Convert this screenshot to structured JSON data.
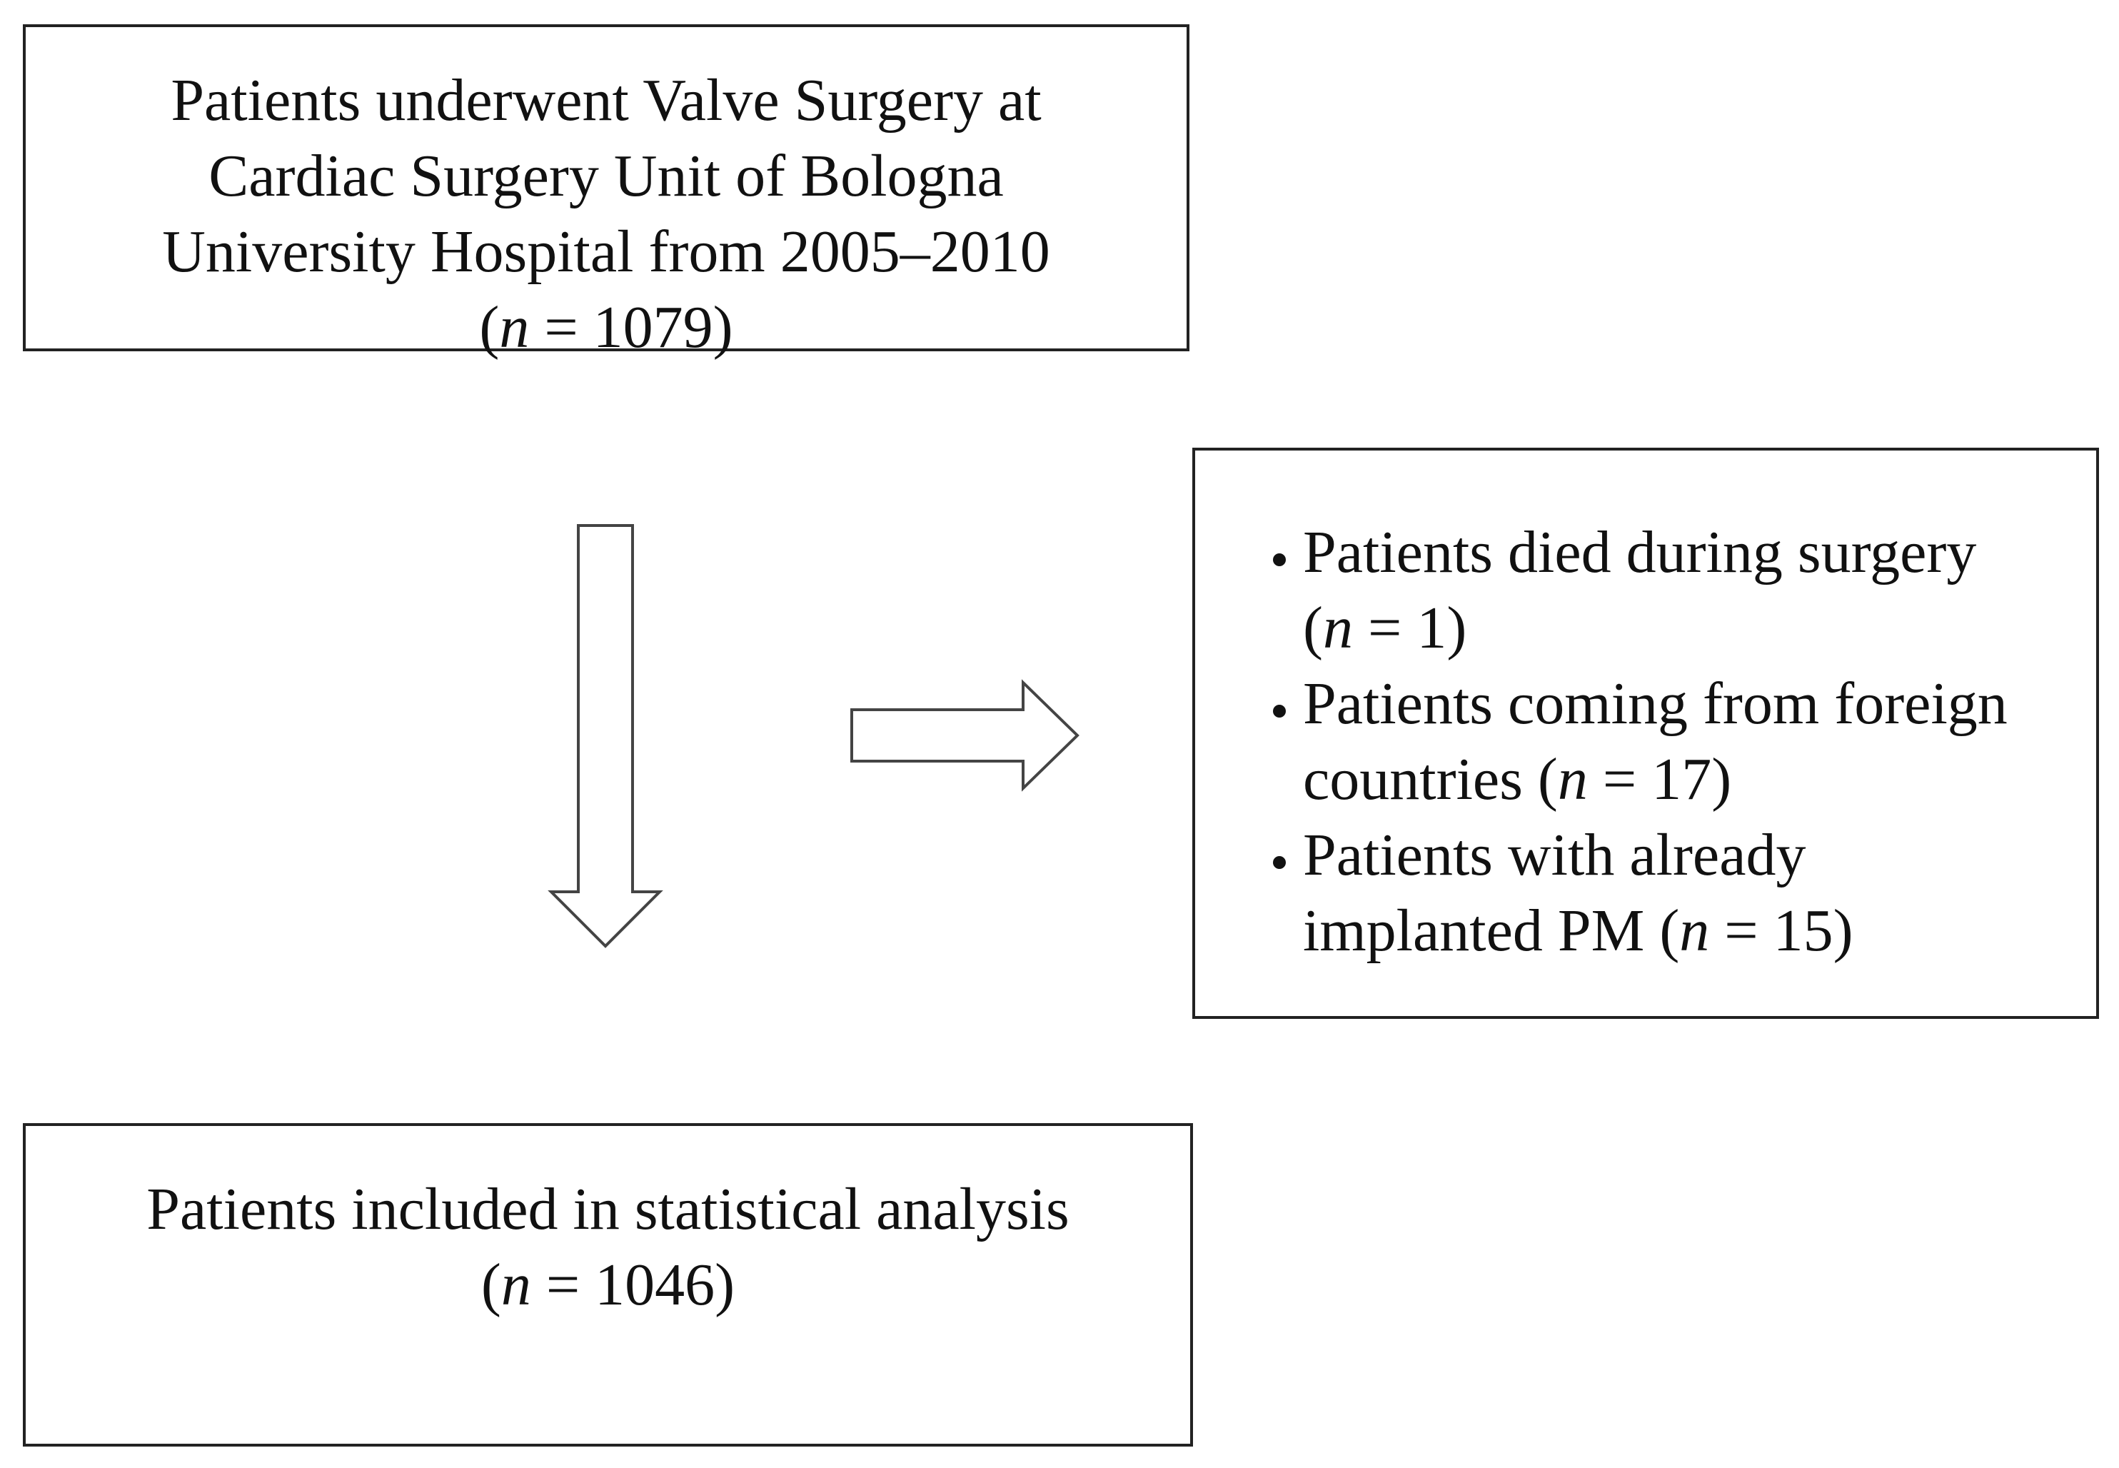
{
  "nodes": [
    {
      "label": "Patients underwent Valve Surgery at Cardiac Surgery Unit of Bologna University Hospital from 2005–2010",
      "count": [
        "(",
        "n",
        " = 1079)"
      ]
    },
    {
      "items": [
        [
          "Patients died during surgery (",
          "n",
          " = 1)"
        ],
        [
          "Patients coming from foreign countries (",
          "n",
          " = 17)"
        ],
        [
          "Patients with already implanted PM (",
          "n",
          " = 15)"
        ]
      ]
    },
    {
      "label": "Patients included in statistical analysis",
      "count": [
        "(",
        "n",
        " = 1046)"
      ]
    }
  ]
}
